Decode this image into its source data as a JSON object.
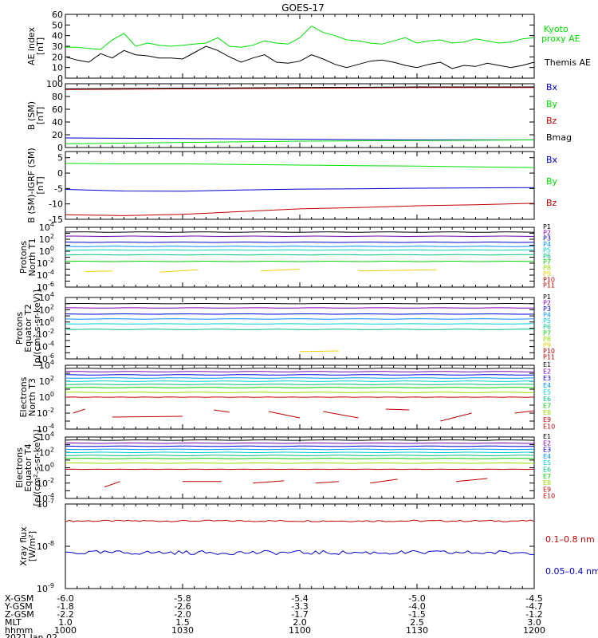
{
  "title": "GOES-17",
  "colors": {
    "black": "#000000",
    "green": "#00e000",
    "blue": "#0000cc",
    "red": "#c00000",
    "ch": [
      "#000000",
      "#7f00b0",
      "#0000d0",
      "#0090ff",
      "#00d0d0",
      "#00c080",
      "#00d000",
      "#90e000",
      "#f0d000",
      "#ff9000",
      "#e00000"
    ],
    "ech": [
      "#000000",
      "#7f00b0",
      "#0000d0",
      "#0090ff",
      "#00d0d0",
      "#00c080",
      "#00d000",
      "#90e000",
      "#f0d000",
      "#ff9000"
    ]
  },
  "x_ticks": [
    "1000",
    "1030",
    "1100",
    "1130",
    "1200"
  ],
  "ephemeris": {
    "labels": [
      "X-GSM",
      "Y-GSM",
      "Z-GSM",
      "MLT",
      "hhmm",
      "2021 Jan 02"
    ],
    "rows": [
      [
        "-6.0",
        "-5.8",
        "-5.4",
        "-5.0",
        "-4.5"
      ],
      [
        "-1.8",
        "-2.6",
        "-3.3",
        "-4.0",
        "-4.7"
      ],
      [
        "-2.2",
        "-2.0",
        "-1.7",
        "-1.5",
        "-1.2"
      ],
      [
        "1.0",
        "1.5",
        "2.0",
        "2.5",
        "3.0"
      ],
      [
        "1000",
        "1030",
        "1100",
        "1130",
        "1200"
      ]
    ]
  },
  "chart_data": [
    {
      "type": "line",
      "ylabel": [
        "AE index",
        "[nT]"
      ],
      "ylim": [
        0,
        60
      ],
      "yticks": [
        "0",
        "10",
        "20",
        "30",
        "40",
        "50",
        "60"
      ],
      "x_minutes": [
        0,
        3,
        6,
        9,
        12,
        15,
        18,
        21,
        24,
        27,
        30,
        33,
        36,
        39,
        42,
        45,
        48,
        51,
        54,
        57,
        60,
        63,
        66,
        69,
        72,
        75,
        78,
        81,
        84,
        87,
        90,
        93,
        96,
        99,
        102,
        105,
        108,
        111,
        114,
        117,
        120
      ],
      "series": [
        {
          "name": "Kyoto proxy AE",
          "color": "green",
          "values": [
            29,
            29,
            28,
            27,
            36,
            42,
            30,
            33,
            31,
            30,
            31,
            32,
            33,
            38,
            30,
            29,
            31,
            35,
            33,
            32,
            38,
            49,
            43,
            40,
            36,
            35,
            33,
            32,
            35,
            38,
            33,
            35,
            36,
            33,
            34,
            37,
            35,
            33,
            34,
            37,
            38
          ],
          "label_lines": [
            "Kyoto",
            "proxy AE"
          ]
        },
        {
          "name": "Themis AE",
          "color": "black",
          "values": [
            20,
            17,
            15,
            23,
            19,
            26,
            22,
            21,
            19,
            19,
            18,
            24,
            30,
            26,
            20,
            15,
            19,
            22,
            15,
            14,
            16,
            22,
            18,
            13,
            10,
            13,
            16,
            17,
            15,
            12,
            10,
            13,
            15,
            9,
            12,
            11,
            14,
            12,
            10,
            12,
            15
          ],
          "label_lines": [
            "Themis AE"
          ]
        }
      ]
    },
    {
      "type": "line",
      "ylabel": [
        "B (SM)",
        "[nT]"
      ],
      "ylim": [
        0,
        100
      ],
      "yticks": [
        "0",
        "20",
        "40",
        "60",
        "80",
        "100"
      ],
      "x_minutes": [
        0,
        30,
        60,
        90,
        120
      ],
      "series": [
        {
          "name": "Bx",
          "color": "blue",
          "values": [
            15,
            14,
            13,
            12,
            12
          ]
        },
        {
          "name": "By",
          "color": "green",
          "values": [
            6,
            8,
            10,
            11,
            12
          ]
        },
        {
          "name": "Bz",
          "color": "red",
          "values": [
            91,
            92,
            93,
            94,
            94
          ]
        },
        {
          "name": "Bmag",
          "color": "black",
          "values": [
            92,
            93,
            94,
            95,
            95
          ]
        }
      ],
      "legend": [
        "Bx",
        "By",
        "Bz",
        "Bmag"
      ]
    },
    {
      "type": "line",
      "ylabel": [
        "B (SM)-IGRF (SM)",
        "[nT]"
      ],
      "ylim": [
        -15,
        7
      ],
      "yticks": [
        "-15",
        "-10",
        "-5",
        "0",
        "5"
      ],
      "ytick_values": [
        -15,
        -10,
        -5,
        0,
        5
      ],
      "x_minutes": [
        0,
        15,
        30,
        45,
        60,
        75,
        90,
        105,
        120
      ],
      "series": [
        {
          "name": "Bx",
          "color": "blue",
          "values": [
            -5.3,
            -5.8,
            -5.9,
            -5.5,
            -5.2,
            -5.1,
            -4.9,
            -4.8,
            -4.7
          ]
        },
        {
          "name": "By",
          "color": "green",
          "values": [
            3.2,
            3.0,
            3.0,
            2.8,
            2.6,
            2.4,
            2.3,
            2.0,
            1.8
          ]
        },
        {
          "name": "Bz",
          "color": "red",
          "values": [
            -13.5,
            -13.8,
            -13.4,
            -12.5,
            -11.6,
            -11.2,
            -10.6,
            -10.3,
            -9.8
          ]
        }
      ],
      "legend": [
        "Bx",
        "By",
        "Bz"
      ]
    },
    {
      "type": "line",
      "scale": "log",
      "ylabel": [
        "Protons",
        "North T1"
      ],
      "log_range": [
        -6,
        4
      ],
      "ytick_exps": [
        -6,
        -4,
        -2,
        0,
        2,
        4
      ],
      "levels": [
        3.2,
        2.5,
        1.5,
        0.8,
        0.2,
        -0.6,
        -1.7
      ],
      "fragments": [
        [
          5,
          -3.4
        ],
        [
          12,
          -3.3
        ],
        [
          24,
          -3.5
        ],
        [
          34,
          -3.1
        ],
        [
          50,
          -3.3
        ],
        [
          60,
          -3.0
        ],
        [
          75,
          -3.3
        ],
        [
          95,
          -3.1
        ],
        [
          108,
          -3.4
        ]
      ],
      "legend": [
        "P1",
        "P2",
        "P3",
        "P4",
        "P5",
        "P6",
        "P7",
        "P8",
        "P9",
        "P10",
        "P11"
      ]
    },
    {
      "type": "line",
      "scale": "log",
      "ylabel": [
        "Protons",
        "Equator T2",
        "[p/(cm²-s-sr-keV)]"
      ],
      "log_range": [
        -6,
        4
      ],
      "ytick_exps": [
        -6,
        -4,
        -2,
        0,
        2,
        4
      ],
      "levels": [
        3.0,
        2.3,
        1.3,
        0.5,
        -0.3,
        -1.2
      ],
      "fragments": [
        [
          60,
          -4.8
        ],
        [
          70,
          -4.7
        ],
        [
          80,
          -4.4
        ]
      ],
      "legend": [
        "P1",
        "P2",
        "P3",
        "P4",
        "P5",
        "P6",
        "P7",
        "P8",
        "P9",
        "P10",
        "P11"
      ]
    },
    {
      "type": "line",
      "scale": "log",
      "ylabel": [
        "Electrons",
        "North T3"
      ],
      "log_range": [
        -4,
        4
      ],
      "ytick_exps": [
        -4,
        -2,
        0,
        2,
        4
      ],
      "levels": [
        3.6,
        3.2,
        2.8,
        2.4,
        2.0,
        1.6,
        1.2,
        0.6
      ],
      "red_level": 0,
      "fragments": [
        [
          2,
          -2.0
        ],
        [
          5,
          -1.5
        ],
        [
          12,
          -2.5
        ],
        [
          30,
          -2.4
        ],
        [
          38,
          -1.6
        ],
        [
          42,
          -1.9
        ],
        [
          52,
          -1.8
        ],
        [
          60,
          -2.6
        ],
        [
          66,
          -1.8
        ],
        [
          75,
          -2.6
        ],
        [
          82,
          -1.5
        ],
        [
          88,
          -1.6
        ],
        [
          96,
          -3.0
        ],
        [
          104,
          -2.0
        ],
        [
          115,
          -2.0
        ],
        [
          120,
          -1.7
        ]
      ],
      "legend": [
        "E1",
        "E2",
        "E3",
        "E4",
        "E5",
        "E6",
        "E7",
        "E8",
        "E9",
        "E10"
      ]
    },
    {
      "type": "line",
      "scale": "log",
      "ylabel": [
        "Electrons",
        "Equator T4",
        "[e/(cm²-s-sr-keV)]"
      ],
      "log_range": [
        -4,
        4
      ],
      "ytick_exps": [
        -4,
        -2,
        0,
        2,
        4
      ],
      "levels": [
        3.6,
        3.2,
        2.8,
        2.4,
        2.0,
        1.6,
        1.2,
        0.6
      ],
      "red_level": -0.2,
      "fragments": [
        [
          10,
          -2.5
        ],
        [
          14,
          -1.8
        ],
        [
          30,
          -1.8
        ],
        [
          40,
          -1.8
        ],
        [
          48,
          -2.0
        ],
        [
          56,
          -1.7
        ],
        [
          64,
          -2.0
        ],
        [
          70,
          -1.8
        ],
        [
          78,
          -2.0
        ],
        [
          85,
          -1.5
        ],
        [
          100,
          -1.8
        ],
        [
          108,
          -1.4
        ],
        [
          118,
          -1.8
        ]
      ],
      "legend": [
        "E1",
        "E2",
        "E3",
        "E4",
        "E5",
        "E6",
        "E7",
        "E8",
        "E9",
        "E10"
      ]
    },
    {
      "type": "line",
      "scale": "log",
      "ylabel": [
        "Xray flux",
        "[W/m²]"
      ],
      "log_range": [
        -9,
        -7
      ],
      "ytick_exps": [
        -9,
        -8,
        -7
      ],
      "series": [
        {
          "name": "0.1-0.8 nm",
          "color": "red",
          "base": -7.4,
          "amp": 0.02
        },
        {
          "name": "0.05-0.4 nm",
          "color": "blue",
          "base": -8.15,
          "amp": 0.05
        }
      ],
      "legend": [
        "0.1–0.8 nm",
        "0.05–0.4 nm"
      ]
    }
  ]
}
